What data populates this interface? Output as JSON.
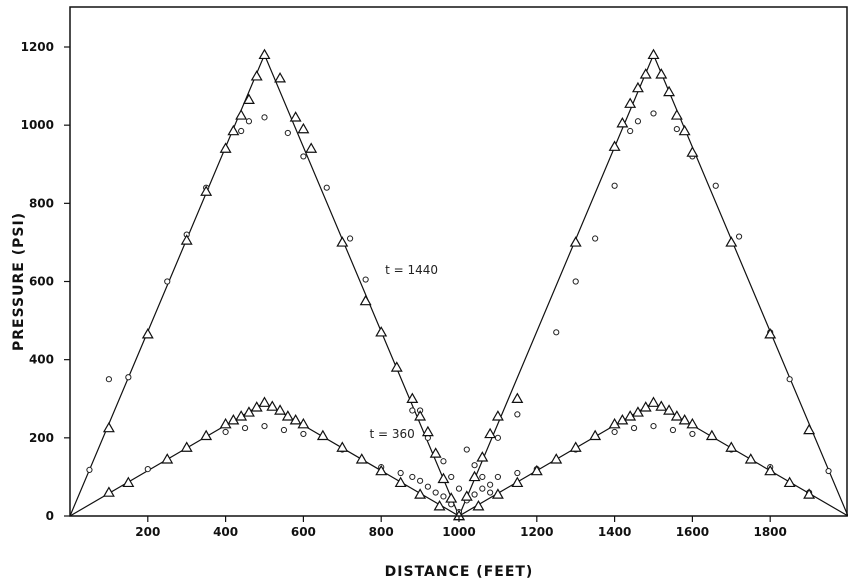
{
  "chart_data": {
    "type": "line",
    "title": "",
    "xlabel": "DISTANCE (FEET)",
    "ylabel": "PRESSURE (PSI)",
    "xlim": [
      0,
      2000
    ],
    "ylim": [
      0,
      1200
    ],
    "x_ticks": [
      200,
      400,
      600,
      800,
      1000,
      1200,
      1400,
      1600,
      1800
    ],
    "y_ticks": [
      0,
      200,
      400,
      600,
      800,
      1000,
      1200
    ],
    "grid": false,
    "annotations": [
      {
        "text": "t = 1440",
        "x": 810,
        "y": 630
      },
      {
        "text": "t = 360",
        "x": 770,
        "y": 210
      }
    ],
    "series": [
      {
        "marker": "line",
        "x": [
          0,
          500,
          1000,
          1500,
          2000
        ],
        "y": [
          0,
          1180,
          0,
          1180,
          0
        ]
      },
      {
        "marker": "line",
        "x": [
          0,
          500,
          1000,
          1500,
          2000
        ],
        "y": [
          0,
          290,
          0,
          290,
          0
        ]
      },
      {
        "marker": "triangle",
        "x": [
          100,
          200,
          300,
          350,
          400,
          420,
          440,
          460,
          480,
          500,
          540,
          580,
          600,
          620,
          700,
          760,
          800,
          840,
          880,
          900,
          920,
          940,
          960,
          980,
          1000,
          1020,
          1040,
          1060,
          1080,
          1100,
          1150,
          1300,
          1400,
          1420,
          1440,
          1460,
          1480,
          1500,
          1520,
          1540,
          1560,
          1580,
          1600,
          1700,
          1800,
          1900
        ],
        "y": [
          225,
          465,
          705,
          830,
          940,
          985,
          1025,
          1065,
          1125,
          1180,
          1120,
          1020,
          990,
          940,
          700,
          550,
          470,
          380,
          300,
          255,
          215,
          160,
          95,
          45,
          0,
          50,
          100,
          150,
          210,
          255,
          300,
          700,
          945,
          1005,
          1055,
          1095,
          1130,
          1180,
          1130,
          1085,
          1025,
          985,
          930,
          700,
          465,
          220
        ]
      },
      {
        "marker": "circle",
        "x": [
          50,
          100,
          150,
          200,
          250,
          300,
          350,
          400,
          440,
          460,
          500,
          560,
          600,
          660,
          720,
          760,
          800,
          880,
          900,
          920,
          940,
          960,
          980,
          1000,
          1020,
          1040,
          1060,
          1080,
          1100,
          1150,
          1250,
          1300,
          1350,
          1400,
          1440,
          1460,
          1500,
          1560,
          1600,
          1660,
          1720,
          1800,
          1850,
          1950
        ],
        "y": [
          118,
          350,
          355,
          465,
          600,
          720,
          840,
          940,
          985,
          1010,
          1020,
          980,
          920,
          840,
          710,
          605,
          470,
          270,
          270,
          200,
          160,
          140,
          100,
          70,
          170,
          130,
          100,
          60,
          200,
          260,
          470,
          600,
          710,
          845,
          985,
          1010,
          1030,
          990,
          920,
          845,
          715,
          470,
          350,
          115
        ]
      },
      {
        "marker": "triangle",
        "x": [
          100,
          150,
          250,
          300,
          350,
          400,
          420,
          440,
          460,
          480,
          500,
          520,
          540,
          560,
          580,
          600,
          650,
          700,
          750,
          800,
          850,
          900,
          950,
          1000,
          1050,
          1100,
          1150,
          1200,
          1250,
          1300,
          1350,
          1400,
          1420,
          1440,
          1460,
          1480,
          1500,
          1520,
          1540,
          1560,
          1580,
          1600,
          1650,
          1700,
          1750,
          1800,
          1850,
          1900
        ],
        "y": [
          60,
          85,
          145,
          175,
          205,
          235,
          245,
          255,
          265,
          278,
          290,
          280,
          270,
          255,
          245,
          235,
          205,
          175,
          145,
          115,
          85,
          55,
          25,
          0,
          25,
          55,
          85,
          115,
          145,
          175,
          205,
          235,
          245,
          255,
          265,
          278,
          290,
          280,
          270,
          255,
          245,
          235,
          205,
          175,
          145,
          115,
          85,
          55
        ]
      },
      {
        "marker": "circle",
        "x": [
          100,
          200,
          300,
          400,
          450,
          500,
          550,
          600,
          700,
          750,
          800,
          850,
          880,
          900,
          920,
          940,
          960,
          980,
          1000,
          1020,
          1040,
          1060,
          1080,
          1100,
          1150,
          1200,
          1300,
          1400,
          1450,
          1500,
          1550,
          1600,
          1700,
          1800,
          1900
        ],
        "y": [
          60,
          120,
          175,
          215,
          225,
          230,
          220,
          210,
          170,
          145,
          125,
          110,
          100,
          90,
          75,
          60,
          50,
          30,
          10,
          40,
          55,
          70,
          80,
          100,
          110,
          120,
          170,
          215,
          225,
          230,
          220,
          210,
          170,
          125,
          60
        ]
      }
    ]
  }
}
